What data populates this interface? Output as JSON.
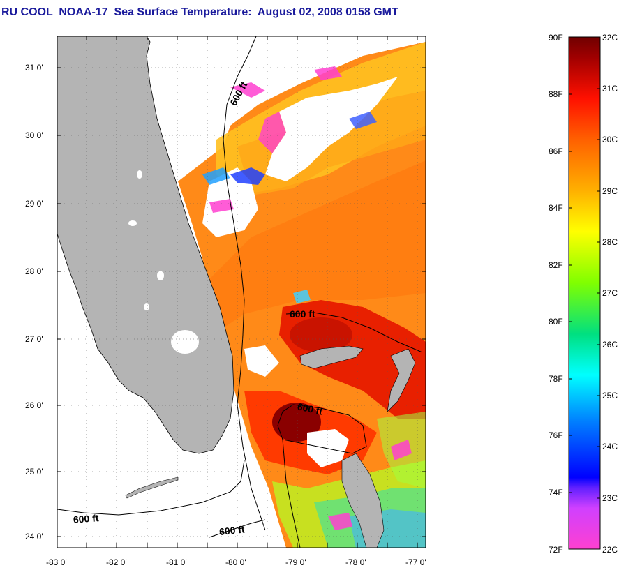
{
  "title": "RU COOL  NOAA-17  Sea Surface Temperature:  August 02, 2008 0158 GMT",
  "map": {
    "lat_labels": [
      "31 0'",
      "30 0'",
      "29 0'",
      "28 0'",
      "27 0'",
      "26 0'",
      "25 0'",
      "24 0'"
    ],
    "lon_labels": [
      "-83 0'",
      "-82 0'",
      "-81 0'",
      "-80 0'",
      "-79 0'",
      "-78 0'",
      "-77 0'"
    ],
    "contour_labels": [
      "600 ft",
      "600 ft",
      "600 ft",
      "600 ft",
      "600 ft"
    ]
  },
  "colorbar": {
    "f_labels": [
      "90F",
      "88F",
      "86F",
      "84F",
      "82F",
      "80F",
      "78F",
      "76F",
      "74F",
      "72F"
    ],
    "c_labels": [
      "32C",
      "31C",
      "30C",
      "29C",
      "28C",
      "27C",
      "26C",
      "25C",
      "24C",
      "23C",
      "22C"
    ],
    "colors": [
      "#ff3fd0",
      "#c040ff",
      "#0000ff",
      "#0090ff",
      "#00ffff",
      "#00e070",
      "#80ff00",
      "#ffff00",
      "#ffb000",
      "#ff6000",
      "#ff1000",
      "#b00000",
      "#700000"
    ]
  },
  "land_color": "#b4b4b4",
  "cloud_color": "#ffffff"
}
